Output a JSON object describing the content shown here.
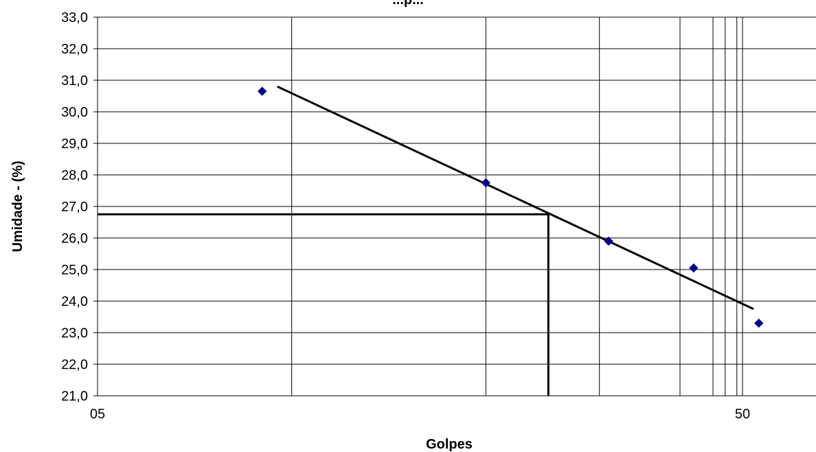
{
  "chart_data": {
    "type": "scatter",
    "title": "...p...",
    "xlabel": "Golpes",
    "ylabel": "Umidade - (%)",
    "x_scale": "log",
    "xlim": [
      5,
      65
    ],
    "ylim": [
      21,
      33
    ],
    "x_tick_labels": [
      {
        "value": 5,
        "label": "05"
      },
      {
        "value": 50,
        "label": "50"
      }
    ],
    "x_minor_gridlines": [
      10,
      20,
      30,
      40,
      45,
      47,
      49
    ],
    "y_ticks": [
      "21,0",
      "22,0",
      "23,0",
      "24,0",
      "25,0",
      "26,0",
      "27,0",
      "28,0",
      "29,0",
      "30,0",
      "31,0",
      "32,0",
      "33,0"
    ],
    "grid": true,
    "series": [
      {
        "points": [
          {
            "x": 9,
            "y": 30.65
          },
          {
            "x": 20,
            "y": 27.75
          },
          {
            "x": 31,
            "y": 25.9
          },
          {
            "x": 42,
            "y": 25.05
          },
          {
            "x": 53,
            "y": 23.3
          }
        ],
        "color": "#00008B",
        "marker": "diamond"
      }
    ],
    "trendline": {
      "from": {
        "x": 9.5,
        "y": 30.8
      },
      "to": {
        "x": 52,
        "y": 23.75
      },
      "color": "#000000"
    },
    "reference": {
      "x": 25,
      "y": 26.75,
      "color": "#000000"
    }
  }
}
